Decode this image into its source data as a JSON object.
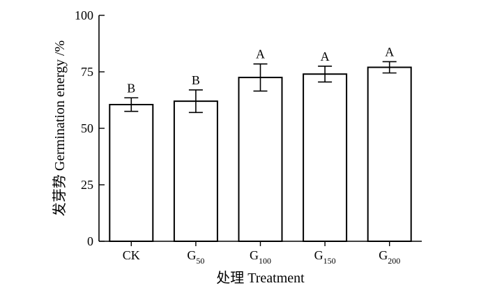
{
  "chart_data": {
    "type": "bar",
    "categories": [
      {
        "main": "CK",
        "sub": ""
      },
      {
        "main": "G",
        "sub": "50"
      },
      {
        "main": "G",
        "sub": "100"
      },
      {
        "main": "G",
        "sub": "150"
      },
      {
        "main": "G",
        "sub": "200"
      }
    ],
    "values": [
      60.5,
      62,
      72.5,
      74,
      77
    ],
    "errors": [
      3,
      5,
      6,
      3.5,
      2.5
    ],
    "significance": [
      "B",
      "B",
      "A",
      "A",
      "A"
    ],
    "xlabel": "处理 Treatment",
    "ylabel": "发芽势 Germination energy /%",
    "ylim": [
      0,
      100
    ],
    "yticks": [
      0,
      25,
      50,
      75,
      100
    ],
    "colors": {
      "bar_fill": "#ffffff",
      "stroke": "#000000"
    }
  }
}
